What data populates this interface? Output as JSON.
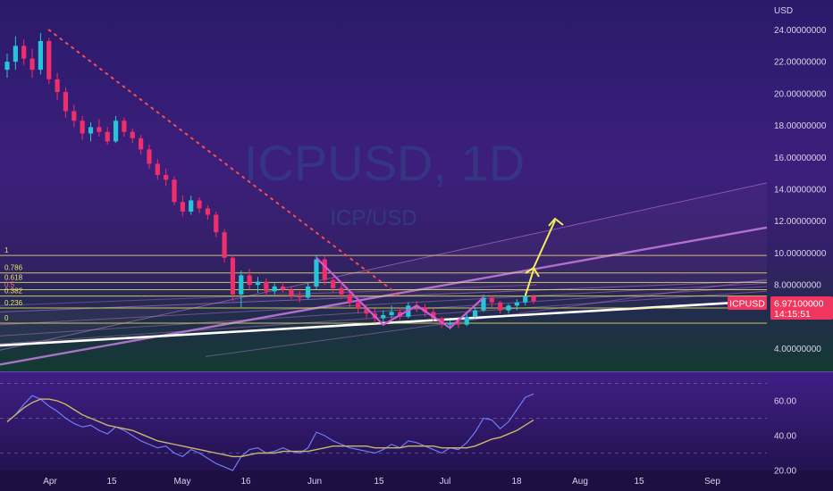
{
  "watermark": {
    "symbol": "ICPUSD, 1D",
    "pair": "ICP/USD"
  },
  "currency": "USD",
  "price_axis": {
    "labels": [
      "24.00000000",
      "22.00000000",
      "20.00000000",
      "18.00000000",
      "16.00000000",
      "14.00000000",
      "12.00000000",
      "10.00000000",
      "8.00000000",
      "4.00000000"
    ],
    "values": [
      24,
      22,
      20,
      18,
      16,
      14,
      12,
      10,
      8,
      4
    ]
  },
  "rsi_axis": {
    "labels": [
      "60.00",
      "40.00",
      "20.00"
    ],
    "values": [
      60,
      40,
      20
    ]
  },
  "time_axis": {
    "labels": [
      "Apr",
      "15",
      "May",
      "16",
      "Jun",
      "15",
      "Jul",
      "18",
      "Aug",
      "15",
      "Sep"
    ]
  },
  "price_tag": {
    "symbol": "ICPUSD",
    "price": "6.97100000",
    "countdown": "14:15:51"
  },
  "fib_levels": [
    {
      "label": "1",
      "value": 9.85
    },
    {
      "label": "0.786",
      "value": 8.75
    },
    {
      "label": "0.618",
      "value": 8.15
    },
    {
      "label": "0.5",
      "value": 7.7
    },
    {
      "label": "0.382",
      "value": 7.3
    },
    {
      "label": "0.236",
      "value": 6.55
    },
    {
      "label": "0",
      "value": 5.6
    }
  ],
  "colors": {
    "bg_top": "#2d1b6b",
    "bg_mid": "#3b1f7a",
    "bg_bottom": "#123a32",
    "up": "#26c6da",
    "down": "#ef2f6b",
    "fib": "#e8e06a",
    "channel": "#c77be0",
    "trend": "#ffffff",
    "arrow": "#f5ee5a",
    "dotted": "#ff4d4d",
    "tag": "#f0355f",
    "rsi": "#6f7bf7",
    "rsi_ma": "#c9b86a"
  },
  "chart_data": {
    "type": "candlestick",
    "title": "ICPUSD, 1D",
    "ylabel": "USD",
    "ylim": [
      3.5,
      25
    ],
    "candles": [
      [
        21.5,
        22.5,
        21.0,
        22.0
      ],
      [
        22.0,
        23.6,
        21.5,
        23.0
      ],
      [
        23.0,
        23.4,
        21.8,
        22.2
      ],
      [
        22.2,
        22.8,
        21.0,
        21.5
      ],
      [
        21.5,
        23.8,
        21.2,
        23.3
      ],
      [
        23.3,
        23.5,
        20.6,
        20.9
      ],
      [
        20.9,
        21.3,
        19.6,
        20.1
      ],
      [
        20.1,
        20.4,
        18.5,
        18.9
      ],
      [
        18.9,
        19.3,
        17.9,
        18.3
      ],
      [
        18.3,
        18.6,
        17.1,
        17.5
      ],
      [
        17.5,
        18.2,
        17.0,
        17.9
      ],
      [
        17.9,
        18.4,
        17.3,
        17.6
      ],
      [
        17.6,
        17.9,
        16.8,
        17.0
      ],
      [
        17.0,
        18.6,
        16.9,
        18.3
      ],
      [
        18.3,
        18.5,
        17.3,
        17.6
      ],
      [
        17.6,
        17.8,
        16.9,
        17.2
      ],
      [
        17.2,
        17.4,
        16.2,
        16.5
      ],
      [
        16.5,
        16.8,
        15.3,
        15.6
      ],
      [
        15.6,
        15.9,
        14.6,
        14.9
      ],
      [
        14.9,
        15.3,
        14.2,
        14.6
      ],
      [
        14.6,
        14.8,
        13.0,
        13.2
      ],
      [
        13.2,
        13.6,
        12.3,
        12.6
      ],
      [
        12.6,
        13.6,
        12.4,
        13.3
      ],
      [
        13.3,
        13.5,
        12.5,
        12.8
      ],
      [
        12.8,
        13.0,
        12.1,
        12.4
      ],
      [
        12.4,
        12.6,
        11.0,
        11.3
      ],
      [
        11.3,
        11.5,
        9.4,
        9.7
      ],
      [
        9.7,
        9.9,
        7.0,
        7.4
      ],
      [
        7.4,
        8.9,
        6.6,
        8.6
      ],
      [
        8.6,
        9.0,
        7.7,
        8.0
      ],
      [
        8.0,
        8.5,
        7.5,
        8.2
      ],
      [
        8.2,
        8.4,
        7.3,
        7.6
      ],
      [
        7.6,
        8.1,
        7.4,
        7.9
      ],
      [
        7.9,
        8.2,
        7.5,
        7.7
      ],
      [
        7.7,
        7.9,
        7.1,
        7.3
      ],
      [
        7.3,
        7.6,
        6.9,
        7.2
      ],
      [
        7.2,
        8.1,
        7.1,
        7.9
      ],
      [
        7.9,
        9.9,
        7.7,
        9.6
      ],
      [
        9.6,
        9.8,
        8.0,
        8.3
      ],
      [
        8.3,
        8.5,
        7.5,
        7.8
      ],
      [
        7.8,
        8.0,
        7.1,
        7.4
      ],
      [
        7.4,
        7.6,
        6.6,
        6.9
      ],
      [
        6.9,
        7.1,
        6.2,
        6.5
      ],
      [
        6.5,
        6.7,
        5.9,
        6.2
      ],
      [
        6.2,
        6.5,
        5.6,
        5.9
      ],
      [
        5.9,
        6.4,
        5.7,
        6.1
      ],
      [
        6.1,
        6.7,
        5.9,
        6.3
      ],
      [
        6.3,
        6.6,
        5.8,
        6.0
      ],
      [
        6.0,
        6.9,
        5.9,
        6.7
      ],
      [
        6.7,
        7.0,
        6.3,
        6.6
      ],
      [
        6.6,
        6.8,
        6.0,
        6.3
      ],
      [
        6.3,
        6.5,
        5.7,
        5.9
      ],
      [
        5.9,
        6.0,
        5.3,
        5.5
      ],
      [
        5.5,
        5.8,
        5.2,
        5.6
      ],
      [
        5.6,
        5.9,
        5.3,
        5.5
      ],
      [
        5.5,
        6.2,
        5.4,
        6.0
      ],
      [
        6.0,
        6.6,
        5.9,
        6.4
      ],
      [
        6.4,
        7.4,
        6.3,
        7.2
      ],
      [
        7.2,
        7.3,
        6.6,
        6.9
      ],
      [
        6.9,
        7.0,
        6.2,
        6.4
      ],
      [
        6.4,
        6.8,
        6.2,
        6.7
      ],
      [
        6.7,
        7.1,
        6.4,
        6.9
      ],
      [
        6.9,
        7.5,
        6.7,
        7.3
      ],
      [
        7.3,
        7.4,
        6.8,
        6.971
      ]
    ],
    "overlay_lines": [
      {
        "name": "",
        "points": [
          [
            5,
            24
          ],
          [
            47,
            7.3
          ]
        ]
      }
    ],
    "rsi": {
      "ylim": [
        20,
        70
      ],
      "values": [
        48,
        52,
        58,
        63,
        61,
        57,
        54,
        50,
        47,
        45,
        46,
        43,
        41,
        45,
        43,
        40,
        37,
        35,
        33,
        34,
        30,
        28,
        32,
        30,
        27,
        24,
        22,
        20,
        28,
        32,
        33,
        30,
        31,
        33,
        31,
        30,
        33,
        42,
        40,
        37,
        35,
        33,
        32,
        31,
        30,
        32,
        35,
        33,
        37,
        36,
        34,
        32,
        30,
        33,
        32,
        36,
        42,
        50,
        49,
        44,
        48,
        55,
        62,
        64
      ],
      "ma_values": [
        48,
        52,
        56,
        59,
        61,
        61,
        60,
        58,
        55,
        52,
        50,
        48,
        46,
        45,
        44,
        43,
        41,
        39,
        37,
        36,
        35,
        34,
        33,
        32,
        31,
        30,
        29,
        28,
        28,
        29,
        30,
        30,
        30,
        31,
        31,
        31,
        31,
        32,
        33,
        34,
        34,
        34,
        34,
        34,
        33,
        33,
        33,
        33,
        34,
        34,
        34,
        34,
        33,
        33,
        33,
        33,
        34,
        36,
        38,
        39,
        41,
        43,
        46,
        49
      ]
    }
  }
}
